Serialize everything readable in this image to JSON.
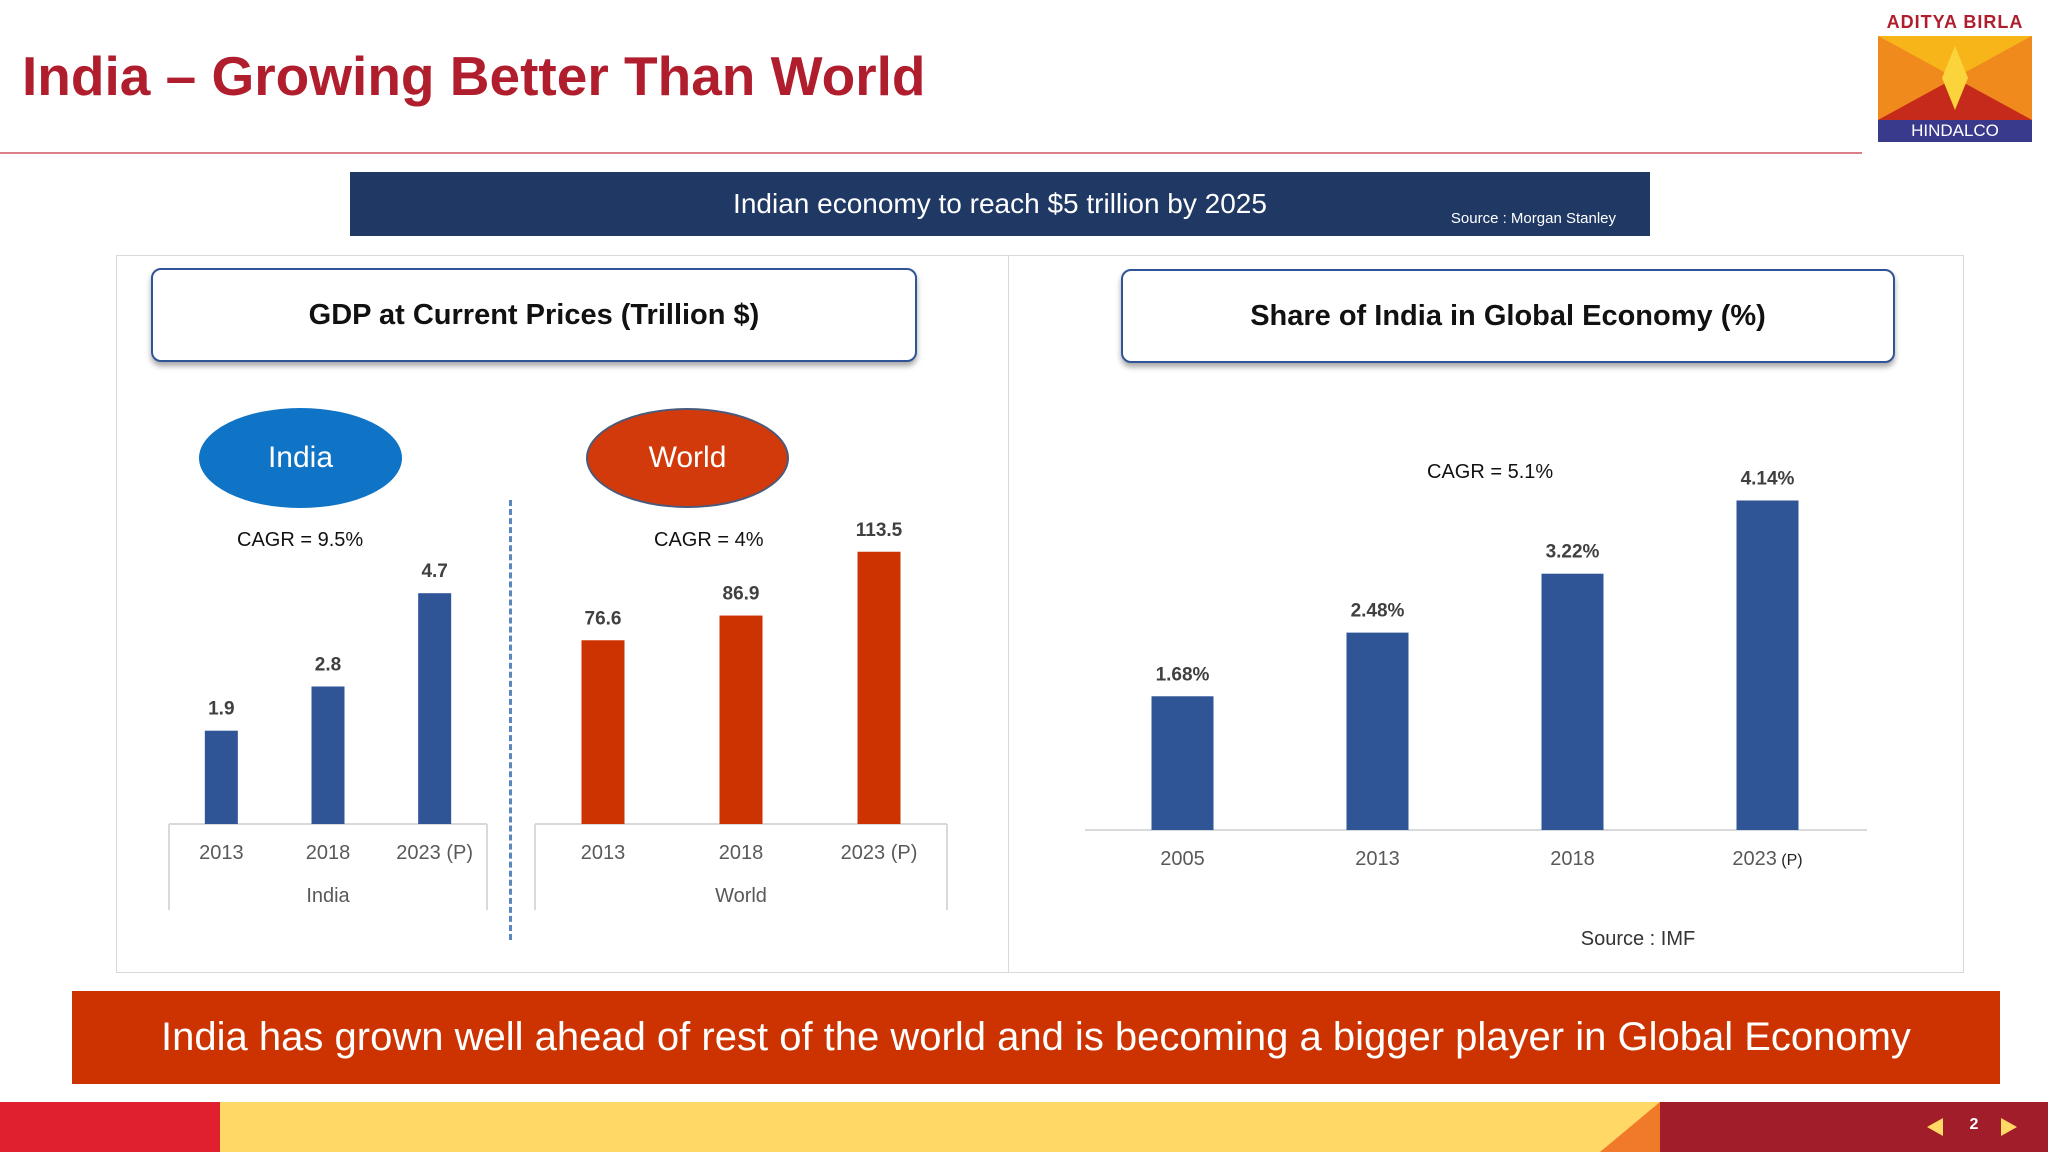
{
  "header": {
    "title": "India – Growing Better Than World",
    "logo_top": "ADITYA BIRLA",
    "logo_bottom": "HINDALCO"
  },
  "banner": {
    "text": "Indian economy to reach $5 trillion by 2025",
    "source": "Source : Morgan Stanley"
  },
  "colors": {
    "india_bar": "#2f5597",
    "world_bar": "#cc3300",
    "title_red": "#b01e2e",
    "banner_navy": "#1f3864"
  },
  "gdp": {
    "title": "GDP at Current Prices (Trillion $)",
    "india_label": "India",
    "world_label": "World",
    "india_cagr": "CAGR  = 9.5%",
    "world_cagr": "CAGR  = 4%"
  },
  "share": {
    "title": "Share of India in Global Economy (%)",
    "cagr": "CAGR  = 5.1%",
    "source": "Source : IMF"
  },
  "chart_data": [
    {
      "type": "bar",
      "title": "GDP at Current Prices (Trillion $) - India",
      "categories": [
        "2013",
        "2018",
        "2023 (P)"
      ],
      "values": [
        1.9,
        2.8,
        4.7
      ],
      "labels": [
        "1.9",
        "2.8",
        "4.7"
      ],
      "xlabel": "India",
      "ylim": [
        0,
        5.6
      ]
    },
    {
      "type": "bar",
      "title": "GDP at Current Prices (Trillion $) - World",
      "categories": [
        "2013",
        "2018",
        "2023 (P)"
      ],
      "values": [
        76.6,
        86.9,
        113.5
      ],
      "labels": [
        "76.6",
        "86.9",
        "113.5"
      ],
      "xlabel": "World",
      "ylim": [
        0,
        148
      ]
    },
    {
      "type": "bar",
      "title": "Share of India in Global Economy (%)",
      "categories": [
        "2005",
        "2013",
        "2018",
        "2023"
      ],
      "category_suffix": [
        "",
        "",
        "",
        "(P)"
      ],
      "values": [
        1.68,
        2.48,
        3.22,
        4.14
      ],
      "labels": [
        "1.68%",
        "2.48%",
        "3.22%",
        "4.14%"
      ],
      "ylim": [
        0,
        4.9
      ]
    }
  ],
  "footer": {
    "message": "India has grown well ahead of  rest of the world and is becoming a bigger player in Global Economy",
    "page": "2"
  }
}
